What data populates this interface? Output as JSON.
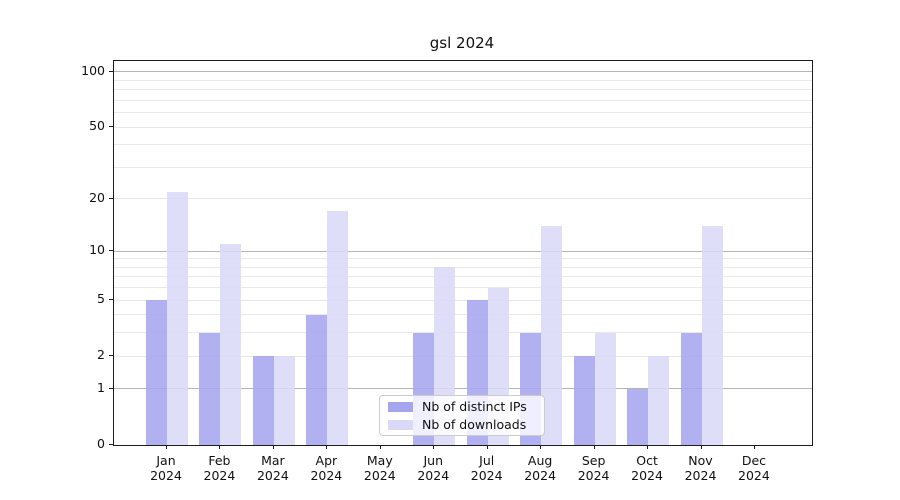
{
  "chart_data": {
    "type": "bar",
    "title": "gsl 2024",
    "year": "2024",
    "months": [
      "Jan",
      "Feb",
      "Mar",
      "Apr",
      "May",
      "Jun",
      "Jul",
      "Aug",
      "Sep",
      "Oct",
      "Nov",
      "Dec"
    ],
    "categories": [
      "Jan 2024",
      "Feb 2024",
      "Mar 2024",
      "Apr 2024",
      "May 2024",
      "Jun 2024",
      "Jul 2024",
      "Aug 2024",
      "Sep 2024",
      "Oct 2024",
      "Nov 2024",
      "Dec 2024"
    ],
    "series": [
      {
        "name": "Nb of distinct IPs",
        "color": "#a6a6f0",
        "values": [
          5,
          3,
          2,
          4,
          0,
          3,
          5,
          3,
          2,
          1,
          3,
          0
        ]
      },
      {
        "name": "Nb of downloads",
        "color": "#dadaf8",
        "values": [
          22,
          11,
          2,
          17,
          0,
          8,
          6,
          14,
          3,
          2,
          14,
          0
        ]
      }
    ],
    "y_scale": "log1p",
    "ylim": [
      0,
      115
    ],
    "y_ticks": [
      0,
      1,
      2,
      5,
      10,
      20,
      50,
      100
    ],
    "y_minor_ticks": [
      3,
      4,
      6,
      7,
      8,
      9,
      30,
      40,
      60,
      70,
      80,
      90
    ],
    "grid": true,
    "legend_position": "inside-bottom-center",
    "colors": {
      "decade_gridline": "#b5b5b5",
      "minor_gridline": "#e9e9e9",
      "spine": "#1c1c1c",
      "background": "#ffffff"
    }
  }
}
